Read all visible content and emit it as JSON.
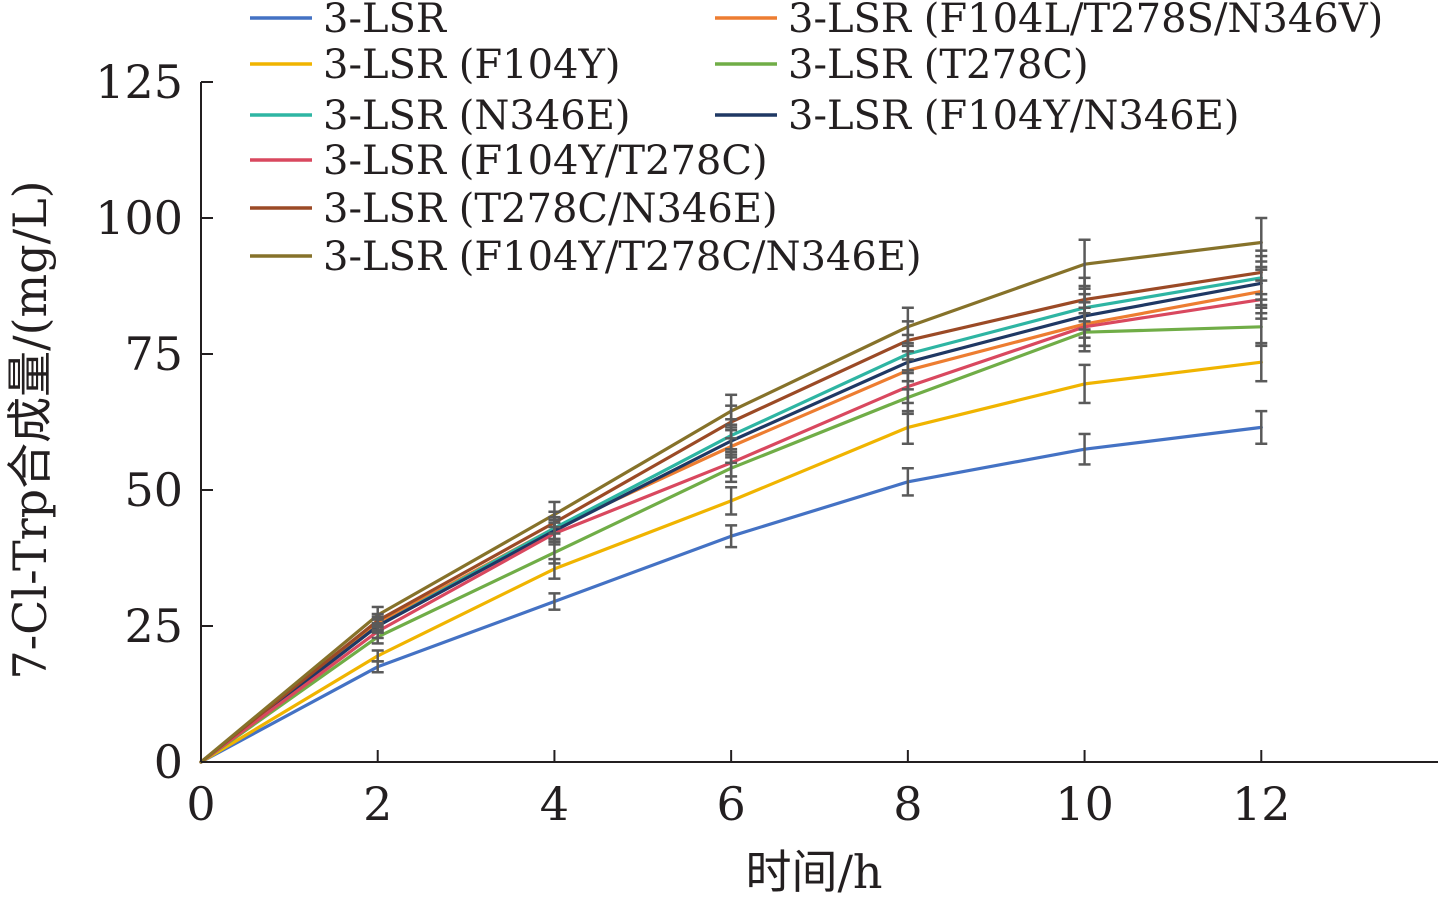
{
  "chart_data": {
    "type": "line",
    "title": "",
    "xlabel": "时间/h",
    "ylabel": "7-Cl-Trp合成量/(mg/L)",
    "xlim": [
      0,
      14
    ],
    "ylim": [
      0,
      125
    ],
    "x_ticks": [
      0,
      2,
      4,
      6,
      8,
      10,
      12
    ],
    "y_ticks": [
      0,
      25,
      50,
      75,
      100,
      125
    ],
    "grid": false,
    "legend_position": "top",
    "x": [
      0,
      2,
      4,
      6,
      8,
      10,
      12
    ],
    "series": [
      {
        "name": "3-LSR",
        "color": "#4472c4",
        "values": [
          0,
          17.5,
          29.5,
          41.5,
          51.5,
          57.5,
          61.5
        ],
        "errors": [
          0,
          1.0,
          1.5,
          2.0,
          2.5,
          2.8,
          3.0
        ]
      },
      {
        "name": "3-LSR (F104L/T278S/N346V)",
        "color": "#ed7d31",
        "values": [
          0,
          25.5,
          43.0,
          58.0,
          72.0,
          80.5,
          86.5
        ],
        "errors": [
          0,
          1.2,
          2.0,
          3.0,
          3.5,
          4.0,
          4.0
        ]
      },
      {
        "name": "3-LSR (F104Y)",
        "color": "#f0b400",
        "values": [
          0,
          19.5,
          35.5,
          48.0,
          61.5,
          69.5,
          73.5
        ],
        "errors": [
          0,
          1.0,
          1.8,
          2.5,
          3.0,
          3.5,
          3.5
        ]
      },
      {
        "name": "3-LSR (T278C)",
        "color": "#70ad47",
        "values": [
          0,
          23.0,
          38.5,
          54.0,
          67.0,
          79.0,
          80.0
        ],
        "errors": [
          0,
          1.2,
          2.0,
          2.5,
          3.0,
          3.5,
          3.5
        ]
      },
      {
        "name": "3-LSR (N346E)",
        "color": "#2eb5a3",
        "values": [
          0,
          25.0,
          43.0,
          60.0,
          75.0,
          83.5,
          89.0
        ],
        "errors": [
          0,
          1.2,
          2.0,
          3.0,
          3.5,
          4.0,
          4.0
        ]
      },
      {
        "name": "3-LSR (F104Y/N346E)",
        "color": "#1f3864",
        "values": [
          0,
          25.0,
          42.5,
          59.0,
          73.5,
          82.0,
          88.0
        ],
        "errors": [
          0,
          1.2,
          2.0,
          3.0,
          3.5,
          4.0,
          4.0
        ]
      },
      {
        "name": "3-LSR (F104Y/T278C)",
        "color": "#d9485f",
        "values": [
          0,
          24.0,
          42.0,
          55.0,
          69.0,
          80.0,
          85.0
        ],
        "errors": [
          0,
          1.2,
          2.0,
          2.5,
          3.0,
          3.5,
          3.5
        ]
      },
      {
        "name": "3-LSR (T278C/N346E)",
        "color": "#9b4a26",
        "values": [
          0,
          26.0,
          44.0,
          62.5,
          77.5,
          85.0,
          90.0
        ],
        "errors": [
          0,
          1.2,
          2.0,
          3.0,
          3.5,
          4.0,
          4.0
        ]
      },
      {
        "name": "3-LSR (F104Y/T278C/N346E)",
        "color": "#86722a",
        "values": [
          0,
          27.0,
          45.5,
          64.5,
          80.0,
          91.5,
          95.5
        ],
        "errors": [
          0,
          1.5,
          2.3,
          3.0,
          3.5,
          4.5,
          4.5
        ]
      }
    ]
  }
}
